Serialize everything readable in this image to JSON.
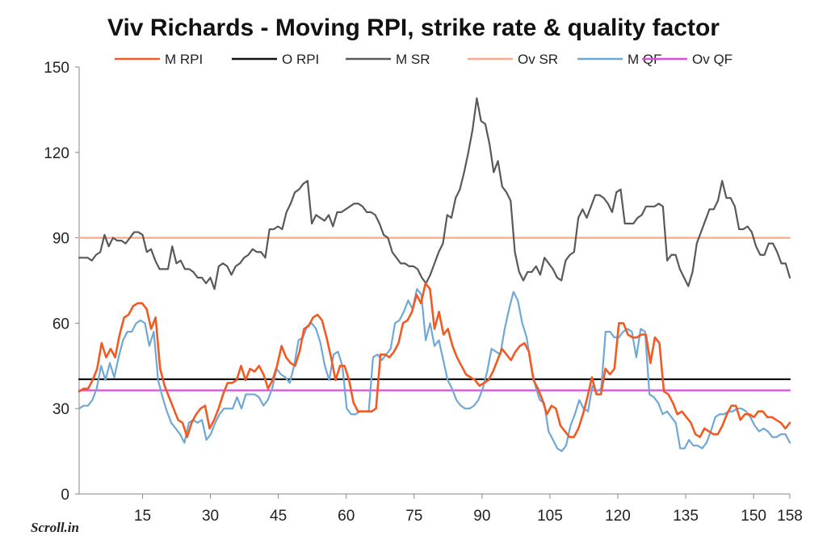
{
  "brand": {
    "text": "Scroll.in"
  },
  "chart_data": {
    "type": "line",
    "title": "Viv Richards - Moving RPI, strike rate & quality factor",
    "xlabel": "",
    "ylabel": "",
    "xlim": [
      1,
      158
    ],
    "ylim": [
      0,
      150
    ],
    "x_ticks": [
      15,
      30,
      45,
      60,
      75,
      90,
      105,
      120,
      135,
      150,
      158
    ],
    "y_ticks": [
      0,
      30,
      60,
      90,
      120,
      150
    ],
    "grid": false,
    "legend_position": "top",
    "series": [
      {
        "name": "M RPI",
        "color": "#f15a22",
        "values": [
          36,
          37,
          37,
          40,
          44,
          53,
          48,
          51,
          48,
          56,
          62,
          63,
          66,
          67,
          67,
          65,
          58,
          62,
          44,
          38,
          34,
          30,
          26,
          25,
          20,
          25,
          28,
          30,
          31,
          23,
          26,
          30,
          35,
          39,
          39,
          40,
          45,
          40,
          44,
          43,
          45,
          42,
          37,
          40,
          45,
          52,
          48,
          46,
          45,
          50,
          58,
          59,
          62,
          63,
          61,
          55,
          48,
          40,
          45,
          45,
          40,
          32,
          29,
          29,
          29,
          29,
          30,
          49,
          49,
          48,
          50,
          53,
          60,
          61,
          64,
          70,
          67,
          74,
          72,
          58,
          64,
          56,
          58,
          52,
          48,
          45,
          42,
          41,
          40,
          38,
          39,
          40,
          43,
          47,
          51,
          49,
          47,
          50,
          52,
          53,
          50,
          40,
          37,
          33,
          28,
          31,
          30,
          24,
          22,
          20,
          20,
          23,
          28,
          34,
          41,
          35,
          35,
          44,
          42,
          44,
          60,
          60,
          56,
          55,
          55,
          56,
          56,
          46,
          55,
          53,
          36,
          35,
          32,
          28,
          29,
          27,
          25,
          21,
          20,
          23,
          22,
          21,
          21,
          24,
          28,
          31,
          31,
          26,
          28,
          28,
          27,
          29,
          29,
          27,
          27,
          26,
          25,
          23,
          25
        ]
      },
      {
        "name": "O RPI",
        "color": "#111111",
        "values": [
          40.3,
          40.3
        ]
      },
      {
        "name": "M SR",
        "color": "#595959",
        "values": [
          83,
          83,
          83,
          82,
          84,
          85,
          91,
          87,
          90,
          89,
          89,
          88,
          90,
          92,
          92,
          91,
          85,
          86,
          82,
          79,
          79,
          79,
          87,
          81,
          82,
          79,
          79,
          78,
          76,
          76,
          74,
          76,
          72,
          80,
          81,
          80,
          77,
          80,
          81,
          83,
          84,
          86,
          85,
          85,
          83,
          93,
          93,
          94,
          93,
          99,
          102,
          106,
          107,
          109,
          110,
          95,
          98,
          97,
          96,
          98,
          94,
          99,
          99,
          100,
          101,
          102,
          102,
          101,
          99,
          99,
          98,
          95,
          91,
          90,
          85,
          83,
          81,
          81,
          80,
          80,
          79,
          76,
          74,
          77,
          81,
          85,
          88,
          98,
          97,
          104,
          107,
          113,
          120,
          128,
          139,
          131,
          130,
          123,
          113,
          117,
          108,
          106,
          103,
          85,
          78,
          75,
          78,
          78,
          80,
          77,
          83,
          81,
          79,
          76,
          75,
          82,
          84,
          85,
          97,
          100,
          97,
          101,
          105,
          105,
          104,
          102,
          99,
          106,
          107,
          95,
          95,
          95,
          97,
          98,
          101,
          101,
          101,
          102,
          101,
          82,
          84,
          84,
          79,
          76,
          73,
          78,
          88,
          92,
          96,
          100,
          100,
          103,
          110,
          104,
          104,
          101,
          93,
          93,
          94,
          92,
          87,
          84,
          84,
          88,
          88,
          85,
          81,
          81,
          76
        ]
      },
      {
        "name": "Ov SR",
        "color": "#f7a98a",
        "values": [
          90,
          90
        ]
      },
      {
        "name": "M QF",
        "color": "#6fa8d6",
        "values": [
          30,
          31,
          31,
          33,
          37,
          45,
          40,
          46,
          41,
          48,
          54,
          57,
          57,
          60,
          61,
          60,
          52,
          57,
          40,
          34,
          29,
          25,
          23,
          21,
          18,
          25,
          26,
          25,
          26,
          19,
          21,
          25,
          28,
          30,
          30,
          30,
          34,
          30,
          35,
          35,
          35,
          34,
          31,
          33,
          37,
          44,
          42,
          41,
          39,
          45,
          54,
          55,
          59,
          60,
          58,
          53,
          45,
          40,
          49,
          50,
          45,
          30,
          28,
          28,
          29,
          29,
          29,
          48,
          49,
          47,
          49,
          51,
          60,
          61,
          64,
          68,
          65,
          72,
          70,
          54,
          60,
          52,
          54,
          47,
          40,
          37,
          33,
          31,
          30,
          30,
          31,
          33,
          37,
          43,
          51,
          50,
          49,
          58,
          65,
          71,
          68,
          60,
          55,
          45,
          38,
          33,
          32,
          22,
          19,
          16,
          15,
          17,
          24,
          28,
          33,
          30,
          29,
          38,
          36,
          37,
          57,
          57,
          55,
          55,
          57,
          58,
          57,
          48,
          58,
          57,
          35,
          34,
          32,
          28,
          29,
          27,
          25,
          16,
          16,
          19,
          17,
          17,
          16,
          18,
          22,
          27,
          28,
          28,
          29,
          29,
          30,
          30,
          29,
          27,
          24,
          22,
          23,
          22,
          20,
          20,
          21,
          21,
          18
        ]
      },
      {
        "name": "Ov QF",
        "color": "#d94fe0",
        "values": [
          36.4,
          36.4
        ]
      }
    ]
  }
}
